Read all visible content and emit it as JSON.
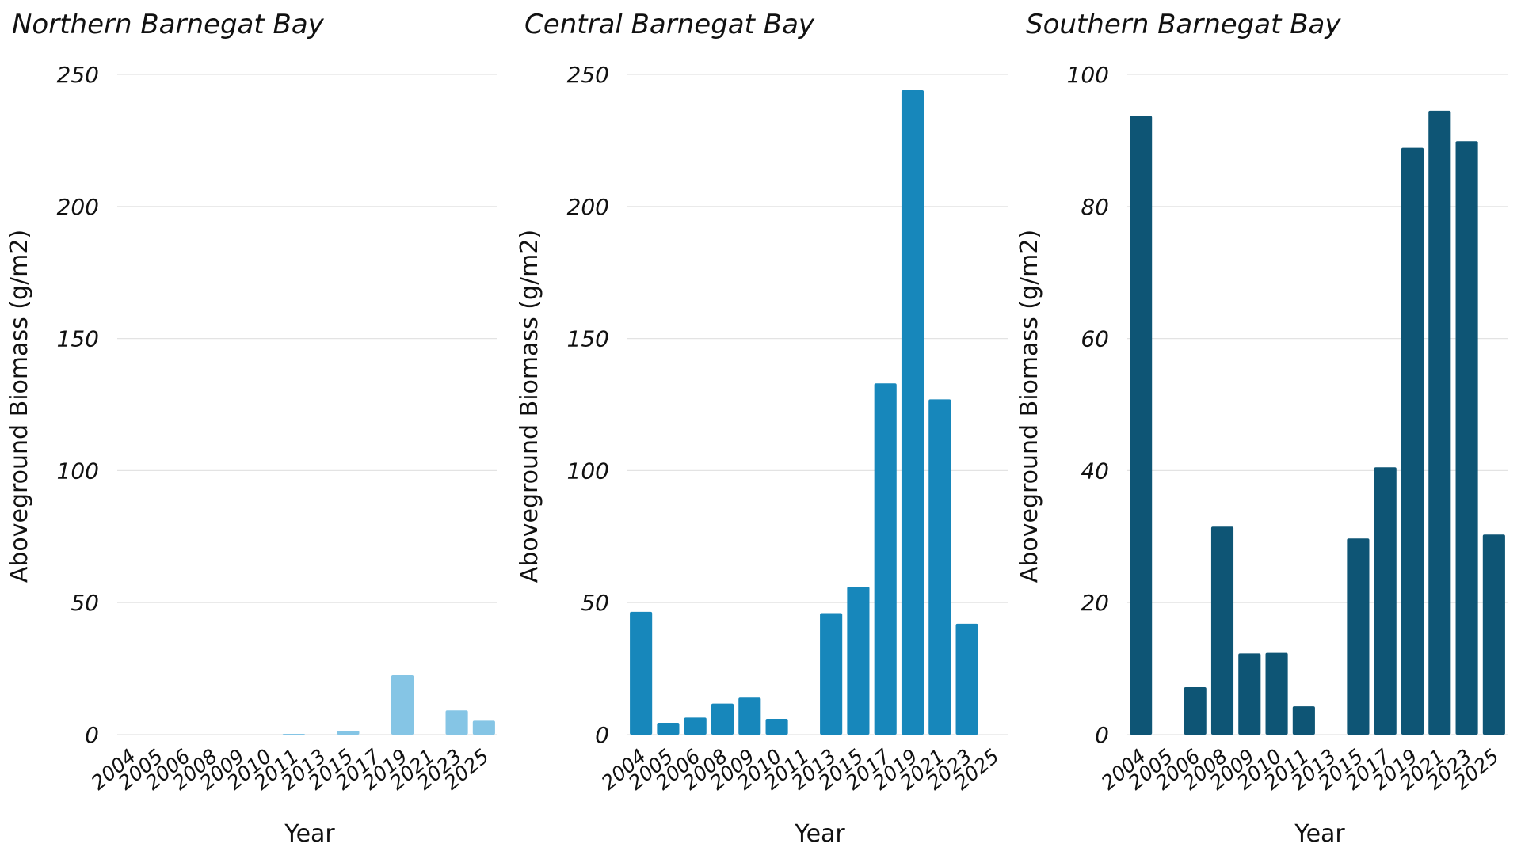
{
  "chart_data": [
    {
      "type": "bar",
      "title": "Northern Barnegat Bay",
      "xlabel": "Year",
      "ylabel": "Aboveground Biomass (g/m2)",
      "categories": [
        "2004",
        "2005",
        "2006",
        "2008",
        "2009",
        "2010",
        "2011",
        "2013",
        "2015",
        "2017",
        "2019",
        "2021",
        "2023",
        "2025"
      ],
      "values": [
        0,
        0,
        0,
        0,
        0,
        0,
        0.3,
        0,
        1.5,
        0,
        22.5,
        0,
        9.2,
        5.3
      ],
      "ylim": [
        0,
        250
      ],
      "yticks": [
        0,
        50,
        100,
        150,
        200,
        250
      ],
      "color": "#85c5e5",
      "grid": "horizontal"
    },
    {
      "type": "bar",
      "title": "Central Barnegat Bay",
      "xlabel": "Year",
      "ylabel": "Aboveground Biomass (g/m2)",
      "categories": [
        "2004",
        "2005",
        "2006",
        "2008",
        "2009",
        "2010",
        "2011",
        "2013",
        "2015",
        "2017",
        "2019",
        "2021",
        "2023",
        "2025"
      ],
      "values": [
        46.5,
        4.5,
        6.5,
        11.8,
        14,
        6,
        0,
        46,
        56,
        133,
        244,
        127,
        42,
        0
      ],
      "ylim": [
        0,
        250
      ],
      "yticks": [
        0,
        50,
        100,
        150,
        200,
        250
      ],
      "color": "#1787bb",
      "grid": "horizontal"
    },
    {
      "type": "bar",
      "title": "Southern Barnegat Bay",
      "xlabel": "Year",
      "ylabel": "Aboveground Biomass (g/m2)",
      "categories": [
        "2004",
        "2005",
        "2006",
        "2008",
        "2009",
        "2010",
        "2011",
        "2013",
        "2015",
        "2017",
        "2019",
        "2021",
        "2023",
        "2025"
      ],
      "values": [
        93.7,
        0,
        7.2,
        31.5,
        12.3,
        12.4,
        4.3,
        0,
        29.7,
        40.5,
        88.9,
        94.5,
        89.9,
        30.3
      ],
      "ylim": [
        0,
        100
      ],
      "yticks": [
        0,
        20,
        40,
        60,
        80,
        100
      ],
      "color": "#0e5575",
      "grid": "horizontal"
    }
  ]
}
